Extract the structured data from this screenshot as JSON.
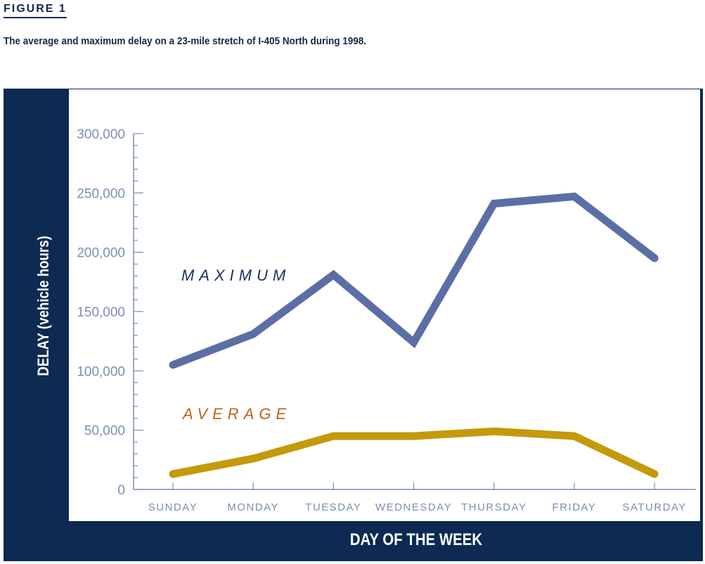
{
  "figure_label": "FIGURE 1",
  "caption": "The average and maximum delay on a 23-mile stretch of I-405 North during 1998.",
  "colors": {
    "panel": "#0c2a52",
    "axis": "#7a8fb5",
    "maximum": "#5b6fa6",
    "average": "#c49a0a",
    "maximum_label": "#1f2f5e",
    "average_label": "#b8671a"
  },
  "chart_data": {
    "type": "line",
    "title": "",
    "xlabel": "DAY OF THE WEEK",
    "ylabel": "DELAY (vehicle hours)",
    "categories": [
      "SUNDAY",
      "MONDAY",
      "TUESDAY",
      "WEDNESDAY",
      "THURSDAY",
      "FRIDAY",
      "SATURDAY"
    ],
    "ylim": [
      0,
      300000
    ],
    "yticks": [
      "0",
      "50,000",
      "100,000",
      "150,000",
      "200,000",
      "250,000",
      "300,000"
    ],
    "ytick_values": [
      0,
      50000,
      100000,
      150000,
      200000,
      250000,
      300000
    ],
    "grid": false,
    "series": [
      {
        "name": "MAXIMUM",
        "values": [
          105000,
          131000,
          181000,
          124000,
          241000,
          247000,
          195000
        ]
      },
      {
        "name": "AVERAGE",
        "values": [
          13000,
          26000,
          45000,
          45000,
          49000,
          45000,
          13000
        ]
      }
    ]
  }
}
